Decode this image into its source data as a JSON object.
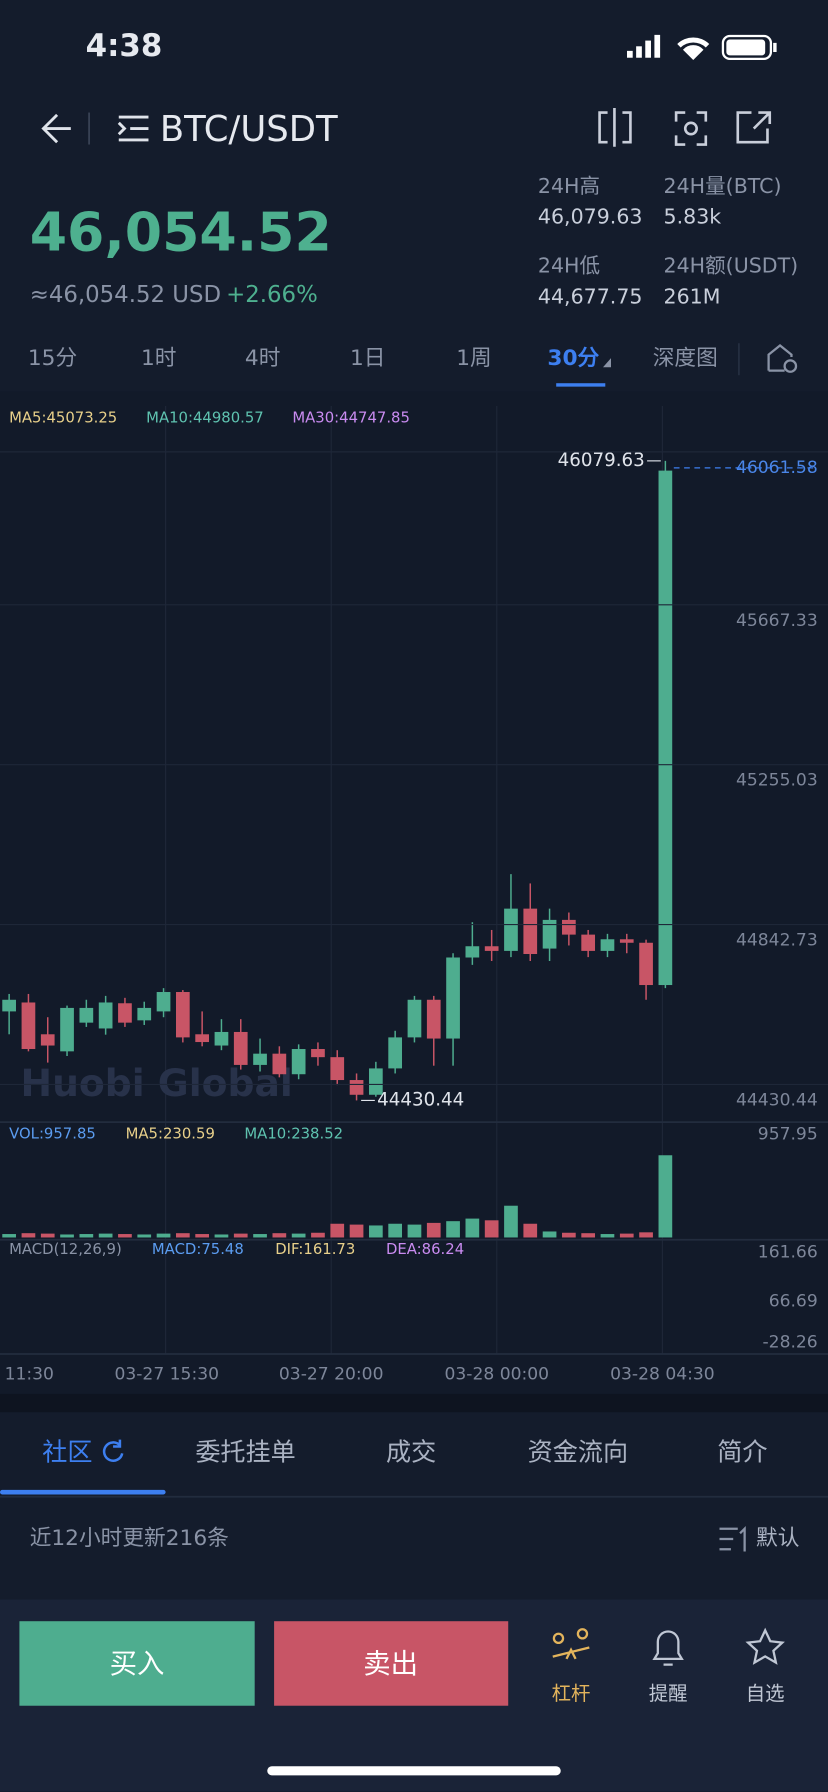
{
  "status": {
    "time": "4:38"
  },
  "header": {
    "pair": "BTC/USDT"
  },
  "ticker": {
    "price": "46,054.52",
    "usd": "≈46,054.52 USD",
    "change": "+2.66%",
    "stats": [
      {
        "label": "24H高",
        "value": "46,079.63"
      },
      {
        "label": "24H量(BTC)",
        "value": "5.83k"
      },
      {
        "label": "24H低",
        "value": "44,677.75"
      },
      {
        "label": "24H额(USDT)",
        "value": "261M"
      }
    ]
  },
  "intervals": [
    "15分",
    "1时",
    "4时",
    "1日",
    "1周",
    "30分",
    "深度图"
  ],
  "chart": {
    "ma": [
      "MA5:45073.25",
      "MA10:44980.57",
      "MA30:44747.85"
    ],
    "price_ticks": [
      46061.58,
      45667.33,
      45255.03,
      44842.73,
      44430.44
    ],
    "high_label": "46079.63",
    "low_label": "44430.44",
    "watermark": "Huobi Global",
    "candles": [
      [
        44660,
        44690,
        44705,
        44601
      ],
      [
        44683,
        44563,
        44705,
        44557
      ],
      [
        44601,
        44572,
        44645,
        44528
      ],
      [
        44557,
        44669,
        44675,
        44545
      ],
      [
        44631,
        44669,
        44690,
        44620
      ],
      [
        44616,
        44683,
        44700,
        44600
      ],
      [
        44681,
        44631,
        44695,
        44620
      ],
      [
        44637,
        44669,
        44685,
        44625
      ],
      [
        44660,
        44710,
        44720,
        44645
      ],
      [
        44710,
        44593,
        44715,
        44580
      ],
      [
        44601,
        44581,
        44660,
        44570
      ],
      [
        44572,
        44607,
        44640,
        44560
      ],
      [
        44607,
        44522,
        44640,
        44510
      ],
      [
        44522,
        44551,
        44590,
        44505
      ],
      [
        44551,
        44498,
        44570,
        44490
      ],
      [
        44498,
        44563,
        44575,
        44485
      ],
      [
        44563,
        44542,
        44580,
        44520
      ],
      [
        44542,
        44483,
        44560,
        44470
      ],
      [
        44483,
        44445,
        44500,
        44430.44
      ],
      [
        44445,
        44513,
        44530,
        44440
      ],
      [
        44513,
        44593,
        44610,
        44500
      ],
      [
        44593,
        44690,
        44700,
        44580
      ],
      [
        44690,
        44590,
        44700,
        44520
      ],
      [
        44590,
        44799,
        44810,
        44520
      ],
      [
        44799,
        44828,
        44890,
        44780
      ],
      [
        44828,
        44816,
        44870,
        44790
      ],
      [
        44816,
        44925,
        45014,
        44800
      ],
      [
        44925,
        44808,
        44990,
        44790
      ],
      [
        44822,
        44896,
        44925,
        44790
      ],
      [
        44896,
        44858,
        44915,
        44830
      ],
      [
        44858,
        44816,
        44870,
        44800
      ],
      [
        44816,
        44846,
        44860,
        44800
      ],
      [
        44846,
        44837,
        44860,
        44810
      ],
      [
        44837,
        44728,
        44845,
        44690
      ],
      [
        44728,
        46054.52,
        46079.63,
        44720
      ]
    ],
    "volume": {
      "legend": [
        "VOL:957.85",
        "MA5:230.59",
        "MA10:238.52"
      ],
      "max": 957.95,
      "values": [
        40,
        50,
        45,
        35,
        40,
        45,
        40,
        35,
        45,
        50,
        40,
        35,
        45,
        40,
        50,
        45,
        55,
        160,
        150,
        140,
        160,
        150,
        170,
        190,
        220,
        200,
        370,
        160,
        70,
        55,
        50,
        40,
        45,
        60,
        957.85
      ]
    },
    "macd": {
      "legend": [
        "MACD(12,26,9)",
        "MACD:75.48",
        "DIF:161.73",
        "DEA:86.24"
      ],
      "ticks": [
        "161.66",
        "66.69",
        "-28.26"
      ]
    },
    "times": [
      "11:30",
      "03-27 15:30",
      "03-27 20:00",
      "03-28 00:00",
      "03-28 04:30"
    ]
  },
  "tabs": [
    "社区",
    "委托挂单",
    "成交",
    "资金流向",
    "简介"
  ],
  "feed": {
    "info": "近12小时更新216条",
    "sort": "默认"
  },
  "actions": {
    "buy": "买入",
    "sell": "卖出",
    "nav": [
      "杠杆",
      "提醒",
      "自选"
    ]
  }
}
